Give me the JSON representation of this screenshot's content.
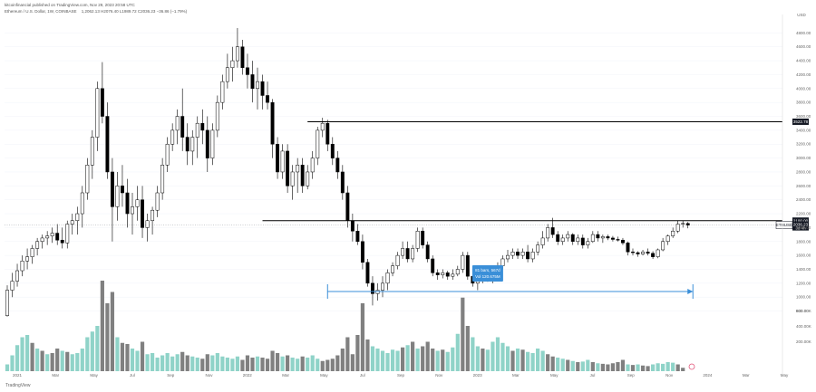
{
  "header": {
    "publisher": "kitcoinfinancial published on TradingView.com, Nov 29, 2023 20:58 UTC",
    "symbol_line": "Ethereum / U.S. Dollar, 1W, COINBASE",
    "ohlc": "1,2062.13 H2076.40 L1989.72 C2036.23 −36.86 (−1.79%)"
  },
  "watermark": "TradingView",
  "colors": {
    "up": "#ffffff",
    "down": "#000000",
    "vol_up": "#8fd3c8",
    "vol_down": "#808080",
    "level": "#000000",
    "measure": "#3a8fd8",
    "grid": "#f0f3fa"
  },
  "chart_data": {
    "type": "candlestick",
    "ylim": [
      0,
      5000
    ],
    "y_ticks": [
      800,
      1000,
      1200,
      1400,
      1600,
      1800,
      2000,
      2200,
      2400,
      2600,
      2800,
      3000,
      3200,
      3400,
      3600,
      3800,
      4000,
      4200,
      4400,
      4600,
      4800
    ],
    "y_tick_labels": [
      "800.00",
      "1000.00",
      "1200.00",
      "1400.00",
      "1600.00",
      "1800.00",
      "2000.00",
      "2200.00",
      "2400.00",
      "2600.00",
      "2800.00",
      "3000.00",
      "3200.00",
      "3400.00",
      "3600.00",
      "3800.00",
      "4000.00",
      "4200.00",
      "4400.00",
      "4600.00",
      "4800.00"
    ],
    "volume_ticks": [
      "600.00K",
      "400.00K",
      "200.00K"
    ],
    "y_unit": "USD",
    "x_ticks": [
      "2021",
      "Mar",
      "May",
      "Jul",
      "Sep",
      "Nov",
      "2022",
      "Mar",
      "May",
      "Jul",
      "Sep",
      "Nov",
      "2023",
      "Mar",
      "May",
      "Jul",
      "Sep",
      "Nov",
      "2024",
      "Mar",
      "May"
    ],
    "levels": [
      {
        "label": "3522.78",
        "value": 3522.78
      },
      {
        "label": "2100.00",
        "value": 2100.0
      }
    ],
    "last_price": {
      "label": "2036.23",
      "symbol": "ETHUSD",
      "sub": "3d 4h",
      "value": 2036.23
    },
    "measure": {
      "line1": "81 bars, 567d",
      "line2": "Vol 120.675M"
    },
    "candles": [
      [
        734,
        1170,
        720,
        1100
      ],
      [
        1100,
        1350,
        1000,
        1230
      ],
      [
        1230,
        1480,
        1150,
        1380
      ],
      [
        1380,
        1600,
        1300,
        1520
      ],
      [
        1520,
        1700,
        1400,
        1580
      ],
      [
        1580,
        1750,
        1480,
        1700
      ],
      [
        1700,
        1850,
        1600,
        1800
      ],
      [
        1800,
        1900,
        1700,
        1850
      ],
      [
        1850,
        1950,
        1750,
        1880
      ],
      [
        1880,
        2000,
        1780,
        1920
      ],
      [
        1920,
        2050,
        1750,
        1820
      ],
      [
        1820,
        2000,
        1700,
        1780
      ],
      [
        1780,
        2100,
        1700,
        2050
      ],
      [
        2050,
        2200,
        1900,
        2100
      ],
      [
        2100,
        2300,
        1900,
        2200
      ],
      [
        2200,
        2600,
        2000,
        2500
      ],
      [
        2500,
        3000,
        2400,
        2900
      ],
      [
        2900,
        3400,
        2700,
        3300
      ],
      [
        3300,
        4100,
        3100,
        4000
      ],
      [
        4000,
        4380,
        3500,
        3600
      ],
      [
        3600,
        3800,
        2700,
        2800
      ],
      [
        2800,
        3000,
        1800,
        2300
      ],
      [
        2300,
        2800,
        2100,
        2600
      ],
      [
        2600,
        2900,
        2300,
        2500
      ],
      [
        2500,
        2700,
        2000,
        2200
      ],
      [
        2200,
        2500,
        1900,
        2300
      ],
      [
        2300,
        2600,
        2100,
        2400
      ],
      [
        2400,
        2600,
        1850,
        2000
      ],
      [
        2000,
        2200,
        1800,
        2100
      ],
      [
        2100,
        2300,
        1900,
        2250
      ],
      [
        2250,
        2600,
        2150,
        2500
      ],
      [
        2500,
        3000,
        2400,
        2900
      ],
      [
        2900,
        3300,
        2800,
        3200
      ],
      [
        3200,
        3500,
        3100,
        3400
      ],
      [
        3400,
        3700,
        3200,
        3600
      ],
      [
        3600,
        4000,
        3100,
        3300
      ],
      [
        3300,
        3500,
        2900,
        3100
      ],
      [
        3100,
        3400,
        2900,
        3300
      ],
      [
        3300,
        3600,
        3000,
        3500
      ],
      [
        3500,
        3700,
        3200,
        3400
      ],
      [
        3400,
        3600,
        2800,
        3000
      ],
      [
        3000,
        3500,
        2900,
        3400
      ],
      [
        3400,
        3900,
        3300,
        3800
      ],
      [
        3800,
        4200,
        3700,
        4100
      ],
      [
        4100,
        4500,
        4000,
        4300
      ],
      [
        4300,
        4600,
        4100,
        4400
      ],
      [
        4400,
        4870,
        4300,
        4600
      ],
      [
        4600,
        4700,
        4200,
        4300
      ],
      [
        4300,
        4500,
        4000,
        4200
      ],
      [
        4200,
        4400,
        3800,
        4000
      ],
      [
        4000,
        4300,
        3700,
        4100
      ],
      [
        4100,
        4200,
        3700,
        3900
      ],
      [
        3900,
        4100,
        3700,
        3800
      ],
      [
        3800,
        3850,
        3000,
        3200
      ],
      [
        3200,
        3300,
        2700,
        2800
      ],
      [
        2800,
        3200,
        2700,
        3100
      ],
      [
        3100,
        3200,
        2500,
        2600
      ],
      [
        2600,
        2900,
        2400,
        2800
      ],
      [
        2800,
        3000,
        2500,
        2900
      ],
      [
        2900,
        3000,
        2500,
        2600
      ],
      [
        2600,
        2900,
        2550,
        2800
      ],
      [
        2800,
        3100,
        2700,
        3000
      ],
      [
        3000,
        3450,
        2900,
        3400
      ],
      [
        3400,
        3580,
        3300,
        3500
      ],
      [
        3500,
        3550,
        3100,
        3200
      ],
      [
        3200,
        3300,
        2900,
        3000
      ],
      [
        3000,
        3100,
        2700,
        2800
      ],
      [
        2800,
        2900,
        2400,
        2500
      ],
      [
        2500,
        2600,
        2000,
        2100
      ],
      [
        2100,
        2200,
        1800,
        1950
      ],
      [
        1950,
        2050,
        1750,
        1800
      ],
      [
        1800,
        1900,
        1400,
        1500
      ],
      [
        1500,
        1550,
        1150,
        1200
      ],
      [
        1200,
        1300,
        880,
        1050
      ],
      [
        1050,
        1200,
        950,
        1100
      ],
      [
        1100,
        1300,
        1000,
        1200
      ],
      [
        1200,
        1400,
        1100,
        1350
      ],
      [
        1350,
        1500,
        1300,
        1450
      ],
      [
        1450,
        1650,
        1400,
        1600
      ],
      [
        1600,
        1800,
        1550,
        1700
      ],
      [
        1700,
        1800,
        1500,
        1550
      ],
      [
        1550,
        1750,
        1500,
        1700
      ],
      [
        1700,
        2000,
        1650,
        1950
      ],
      [
        1950,
        2000,
        1700,
        1750
      ],
      [
        1750,
        1800,
        1500,
        1550
      ],
      [
        1550,
        1600,
        1300,
        1350
      ],
      [
        1350,
        1400,
        1250,
        1320
      ],
      [
        1320,
        1400,
        1270,
        1350
      ],
      [
        1350,
        1380,
        1250,
        1300
      ],
      [
        1300,
        1400,
        1250,
        1330
      ],
      [
        1330,
        1450,
        1300,
        1400
      ],
      [
        1400,
        1650,
        1350,
        1600
      ],
      [
        1600,
        1650,
        1250,
        1300
      ],
      [
        1300,
        1350,
        1150,
        1200
      ],
      [
        1200,
        1300,
        1100,
        1250
      ],
      [
        1250,
        1350,
        1200,
        1300
      ],
      [
        1300,
        1350,
        1220,
        1250
      ],
      [
        1250,
        1300,
        1200,
        1270
      ],
      [
        1270,
        1500,
        1250,
        1450
      ],
      [
        1450,
        1600,
        1400,
        1550
      ],
      [
        1550,
        1680,
        1500,
        1600
      ],
      [
        1600,
        1700,
        1550,
        1650
      ],
      [
        1650,
        1700,
        1550,
        1600
      ],
      [
        1600,
        1700,
        1550,
        1650
      ],
      [
        1650,
        1750,
        1500,
        1550
      ],
      [
        1550,
        1700,
        1500,
        1650
      ],
      [
        1650,
        1800,
        1600,
        1750
      ],
      [
        1750,
        1950,
        1700,
        1850
      ],
      [
        1850,
        2050,
        1800,
        2000
      ],
      [
        2000,
        2140,
        1850,
        1900
      ],
      [
        1900,
        1950,
        1750,
        1800
      ],
      [
        1800,
        1900,
        1750,
        1850
      ],
      [
        1850,
        1950,
        1800,
        1900
      ],
      [
        1900,
        1920,
        1750,
        1800
      ],
      [
        1800,
        1900,
        1750,
        1850
      ],
      [
        1850,
        1900,
        1700,
        1750
      ],
      [
        1750,
        1850,
        1700,
        1800
      ],
      [
        1800,
        1950,
        1780,
        1900
      ],
      [
        1900,
        1950,
        1800,
        1850
      ],
      [
        1850,
        1900,
        1780,
        1870
      ],
      [
        1870,
        1900,
        1820,
        1850
      ],
      [
        1850,
        1880,
        1800,
        1830
      ],
      [
        1830,
        1870,
        1800,
        1820
      ],
      [
        1820,
        1850,
        1750,
        1780
      ],
      [
        1780,
        1800,
        1600,
        1650
      ],
      [
        1650,
        1700,
        1600,
        1640
      ],
      [
        1640,
        1660,
        1580,
        1620
      ],
      [
        1620,
        1680,
        1600,
        1650
      ],
      [
        1650,
        1700,
        1600,
        1630
      ],
      [
        1630,
        1660,
        1550,
        1580
      ],
      [
        1580,
        1700,
        1560,
        1680
      ],
      [
        1680,
        1850,
        1660,
        1800
      ],
      [
        1800,
        1900,
        1750,
        1880
      ],
      [
        1880,
        2000,
        1850,
        1950
      ],
      [
        1950,
        2100,
        1920,
        2050
      ],
      [
        2050,
        2100,
        2000,
        2060
      ],
      [
        2060,
        2080,
        1990,
        2036
      ]
    ],
    "volumes": [
      [
        60,
        1
      ],
      [
        140,
        1
      ],
      [
        230,
        1
      ],
      [
        300,
        1
      ],
      [
        320,
        1
      ],
      [
        250,
        0
      ],
      [
        200,
        1
      ],
      [
        180,
        0
      ],
      [
        150,
        1
      ],
      [
        160,
        0
      ],
      [
        200,
        0
      ],
      [
        180,
        1
      ],
      [
        170,
        0
      ],
      [
        150,
        1
      ],
      [
        160,
        1
      ],
      [
        200,
        1
      ],
      [
        300,
        1
      ],
      [
        350,
        1
      ],
      [
        400,
        1
      ],
      [
        800,
        0
      ],
      [
        600,
        0
      ],
      [
        700,
        0
      ],
      [
        300,
        1
      ],
      [
        250,
        0
      ],
      [
        240,
        0
      ],
      [
        200,
        1
      ],
      [
        180,
        1
      ],
      [
        260,
        0
      ],
      [
        150,
        1
      ],
      [
        160,
        1
      ],
      [
        120,
        1
      ],
      [
        140,
        1
      ],
      [
        160,
        1
      ],
      [
        130,
        1
      ],
      [
        150,
        1
      ],
      [
        170,
        0
      ],
      [
        140,
        0
      ],
      [
        130,
        1
      ],
      [
        120,
        1
      ],
      [
        110,
        0
      ],
      [
        150,
        0
      ],
      [
        140,
        1
      ],
      [
        160,
        1
      ],
      [
        130,
        1
      ],
      [
        120,
        1
      ],
      [
        110,
        1
      ],
      [
        130,
        1
      ],
      [
        100,
        0
      ],
      [
        140,
        0
      ],
      [
        120,
        0
      ],
      [
        130,
        1
      ],
      [
        120,
        0
      ],
      [
        110,
        0
      ],
      [
        180,
        0
      ],
      [
        160,
        0
      ],
      [
        130,
        1
      ],
      [
        140,
        0
      ],
      [
        120,
        1
      ],
      [
        110,
        1
      ],
      [
        130,
        0
      ],
      [
        120,
        1
      ],
      [
        140,
        1
      ],
      [
        110,
        1
      ],
      [
        90,
        0
      ],
      [
        100,
        0
      ],
      [
        110,
        0
      ],
      [
        140,
        0
      ],
      [
        200,
        0
      ],
      [
        300,
        0
      ],
      [
        150,
        0
      ],
      [
        320,
        0
      ],
      [
        600,
        0
      ],
      [
        280,
        0
      ],
      [
        220,
        1
      ],
      [
        200,
        1
      ],
      [
        180,
        1
      ],
      [
        160,
        1
      ],
      [
        190,
        1
      ],
      [
        180,
        1
      ],
      [
        210,
        0
      ],
      [
        230,
        1
      ],
      [
        260,
        0
      ],
      [
        200,
        1
      ],
      [
        220,
        0
      ],
      [
        260,
        0
      ],
      [
        200,
        0
      ],
      [
        180,
        1
      ],
      [
        190,
        0
      ],
      [
        170,
        1
      ],
      [
        210,
        1
      ],
      [
        330,
        1
      ],
      [
        650,
        0
      ],
      [
        400,
        0
      ],
      [
        300,
        1
      ],
      [
        220,
        1
      ],
      [
        200,
        0
      ],
      [
        190,
        1
      ],
      [
        260,
        1
      ],
      [
        300,
        1
      ],
      [
        250,
        1
      ],
      [
        220,
        1
      ],
      [
        180,
        0
      ],
      [
        200,
        1
      ],
      [
        190,
        0
      ],
      [
        170,
        1
      ],
      [
        160,
        1
      ],
      [
        200,
        1
      ],
      [
        180,
        1
      ],
      [
        150,
        0
      ],
      [
        130,
        0
      ],
      [
        120,
        1
      ],
      [
        110,
        1
      ],
      [
        100,
        0
      ],
      [
        90,
        1
      ],
      [
        80,
        0
      ],
      [
        85,
        1
      ],
      [
        100,
        1
      ],
      [
        80,
        0
      ],
      [
        70,
        1
      ],
      [
        65,
        0
      ],
      [
        60,
        0
      ],
      [
        70,
        0
      ],
      [
        80,
        0
      ],
      [
        100,
        0
      ],
      [
        60,
        1
      ],
      [
        55,
        0
      ],
      [
        60,
        1
      ],
      [
        50,
        0
      ],
      [
        45,
        0
      ],
      [
        60,
        1
      ],
      [
        70,
        1
      ],
      [
        65,
        1
      ],
      [
        80,
        1
      ],
      [
        75,
        1
      ],
      [
        60,
        0
      ],
      [
        30,
        0
      ]
    ]
  }
}
